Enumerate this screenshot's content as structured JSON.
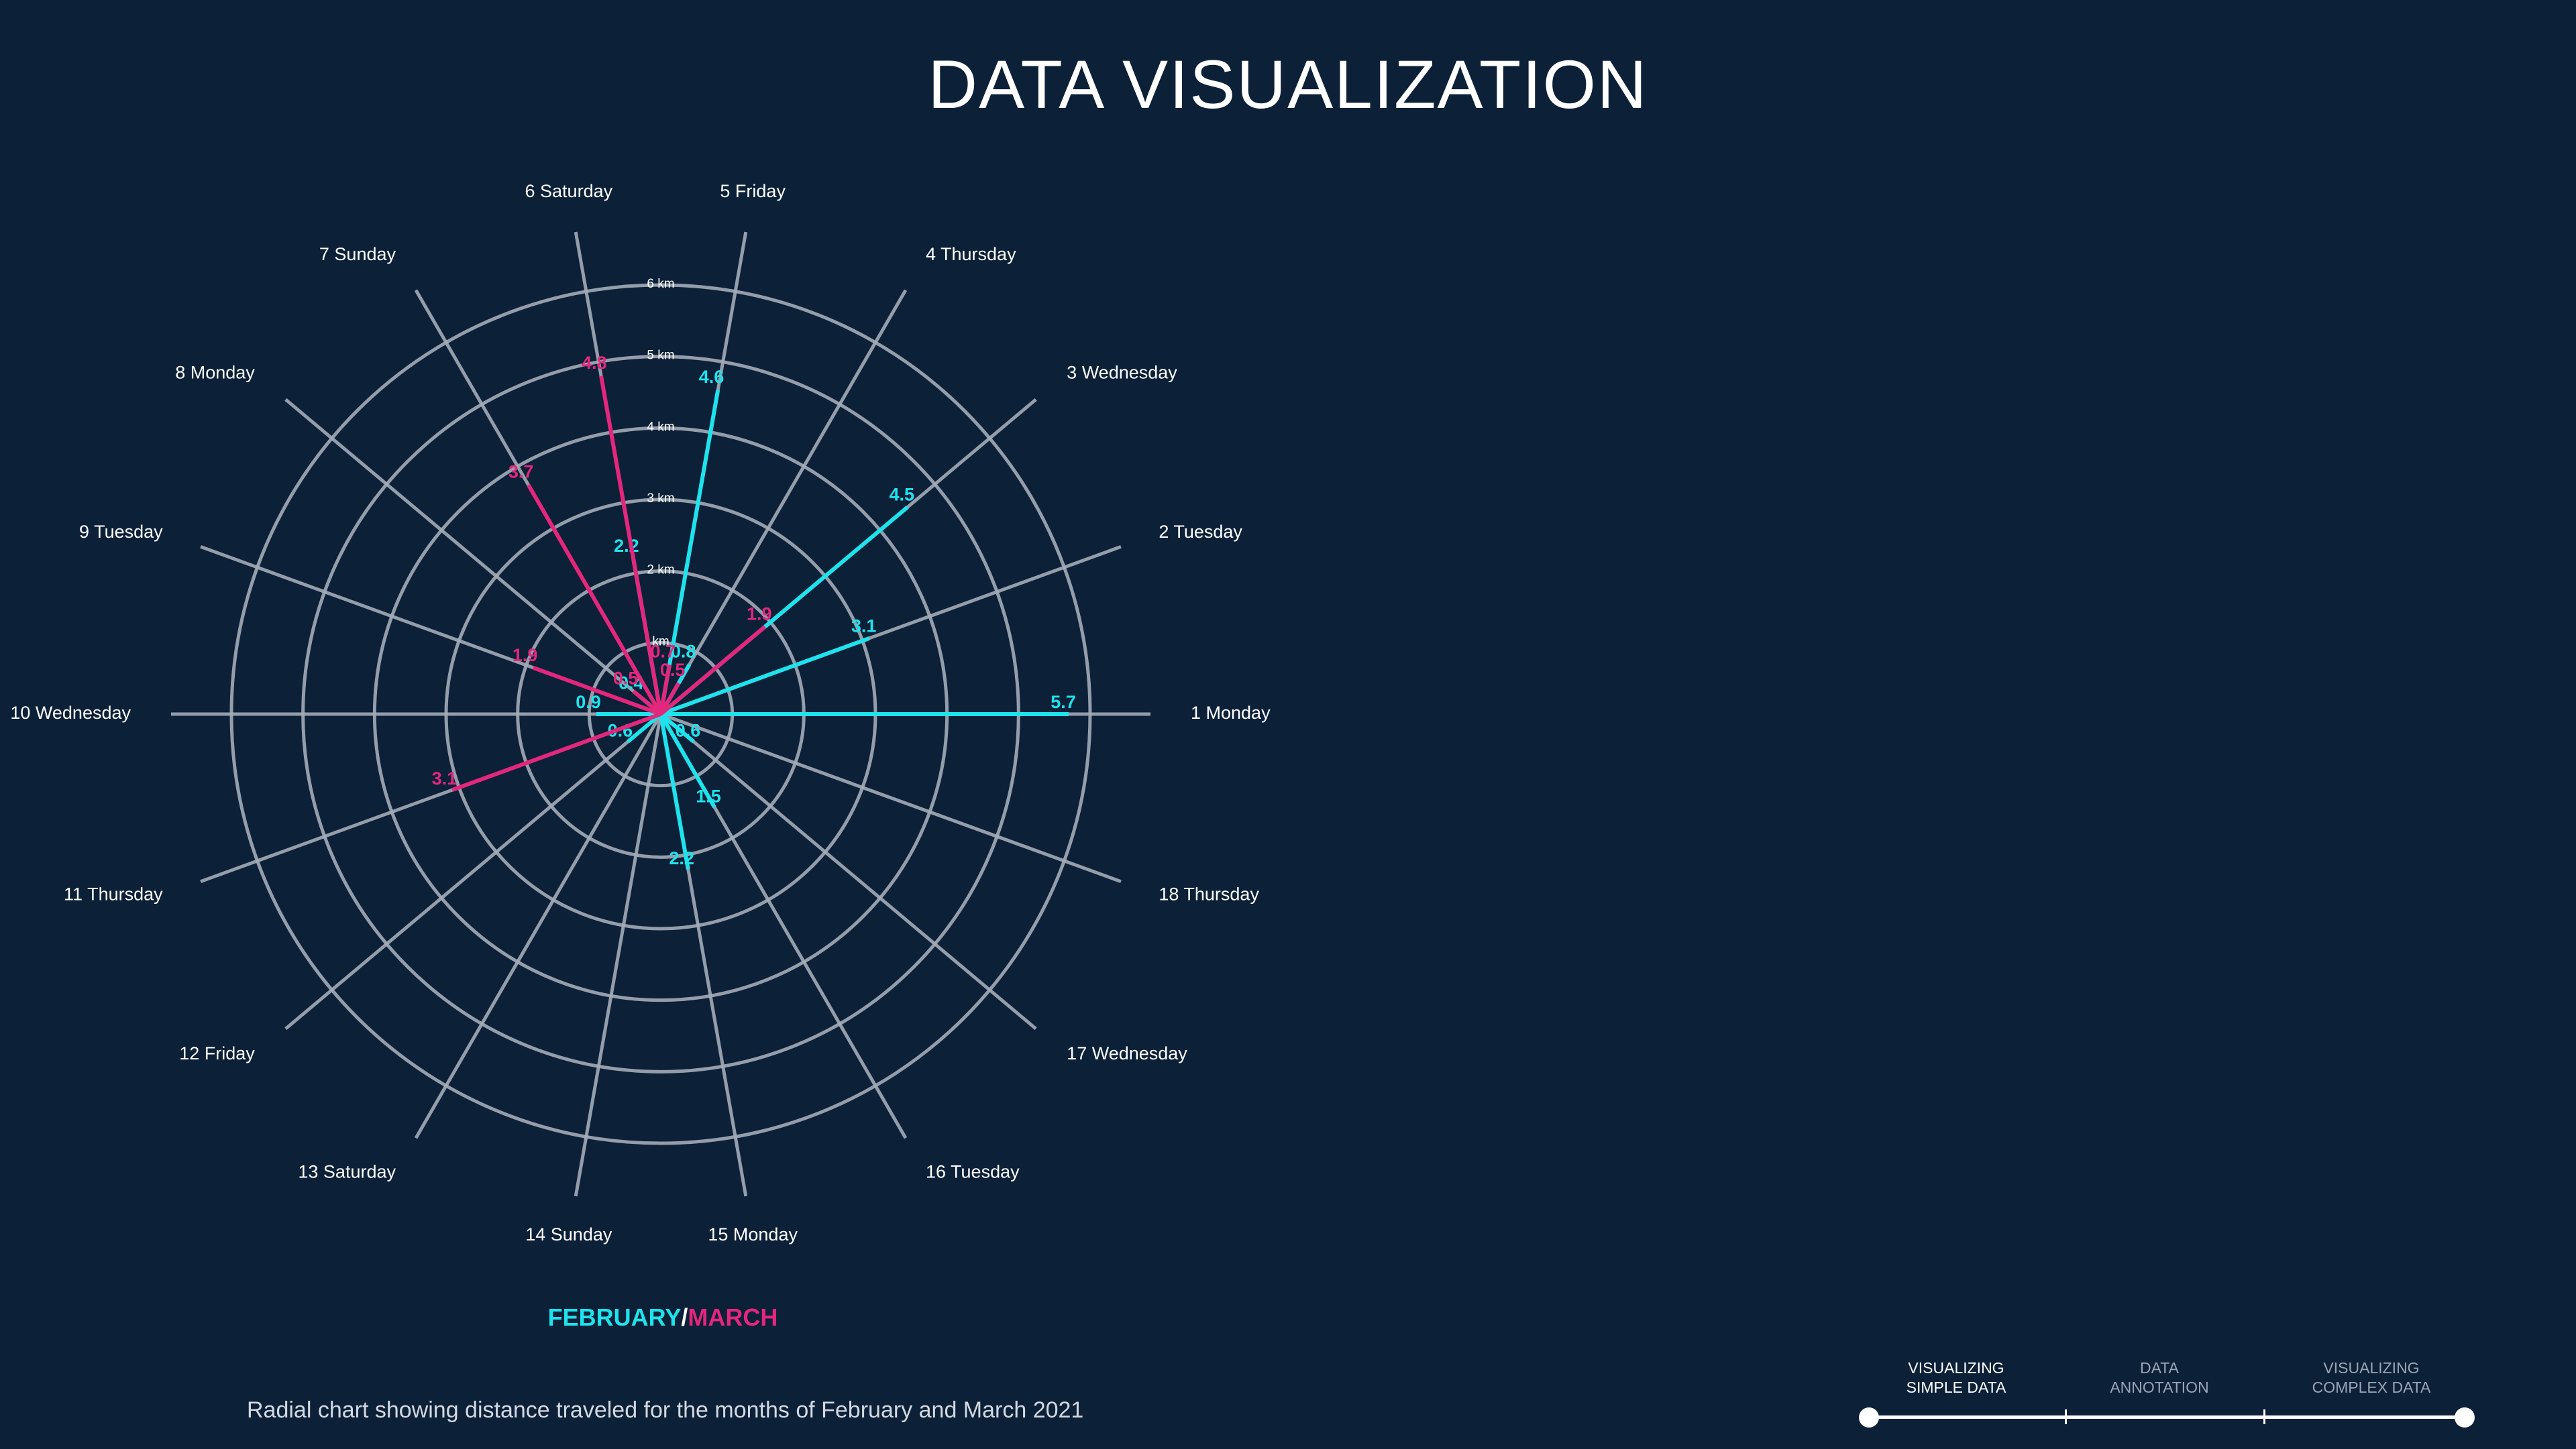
{
  "page": {
    "title": "DATA VISUALIZATION"
  },
  "legend": {
    "february": "FEBRUARY",
    "separator": "/",
    "march": "MARCH"
  },
  "caption": "Radial chart showing distance traveled for the months of February and March 2021",
  "colors": {
    "background": "#0c2038",
    "february": "#1fe3ec",
    "march": "#e3277d",
    "grid": "#a3acb8"
  },
  "nav": {
    "steps": [
      {
        "line1": "VISUALIZING",
        "line2": "SIMPLE DATA",
        "active": true
      },
      {
        "line1": "DATA",
        "line2": "ANNOTATION",
        "active": false
      },
      {
        "line1": "VISUALIZING",
        "line2": "COMPLEX DATA",
        "active": false
      }
    ]
  },
  "chart_data": {
    "type": "radial",
    "rings": [
      "km",
      "2 km",
      "3 km",
      "4 km",
      "5 km",
      "6 km"
    ],
    "ring_values": [
      1,
      2,
      3,
      4,
      5,
      6
    ],
    "r_max": 6,
    "days": [
      "1 Monday",
      "2 Tuesday",
      "3 Wednesday",
      "4 Thursday",
      "5 Friday",
      "6 Saturday",
      "7 Sunday",
      "8 Monday",
      "9 Tuesday",
      "10 Wednesday",
      "11 Thursday",
      "12 Friday",
      "13 Saturday",
      "14 Sunday",
      "15 Monday",
      "16 Tuesday",
      "17 Wednesday",
      "18 Thursday"
    ],
    "series": [
      {
        "name": "FEBRUARY",
        "values": [
          5.7,
          3.1,
          4.5,
          0.8,
          4.6,
          2.2,
          null,
          0.4,
          null,
          0.9,
          null,
          0.6,
          null,
          null,
          2.2,
          1.5,
          0.6,
          null
        ],
        "labels": [
          "5.7",
          "3.1",
          "4.5",
          "0.8",
          "4.6",
          "2.2",
          null,
          "0.4",
          null,
          "0.9",
          null,
          "0.6",
          null,
          null,
          "2.2",
          "1.5",
          "0.6",
          null
        ]
      },
      {
        "name": "MARCH",
        "values": [
          null,
          null,
          1.9,
          0.5,
          0.7,
          4.8,
          3.7,
          0.5,
          1.9,
          null,
          3.1,
          null,
          null,
          null,
          null,
          null,
          null,
          null
        ],
        "labels": [
          null,
          null,
          "1.9",
          "0.5",
          "0.7",
          "4.8",
          "3.7",
          "0.5",
          "1.9",
          null,
          "3.1",
          null,
          null,
          null,
          null,
          null,
          null,
          null
        ]
      }
    ]
  }
}
